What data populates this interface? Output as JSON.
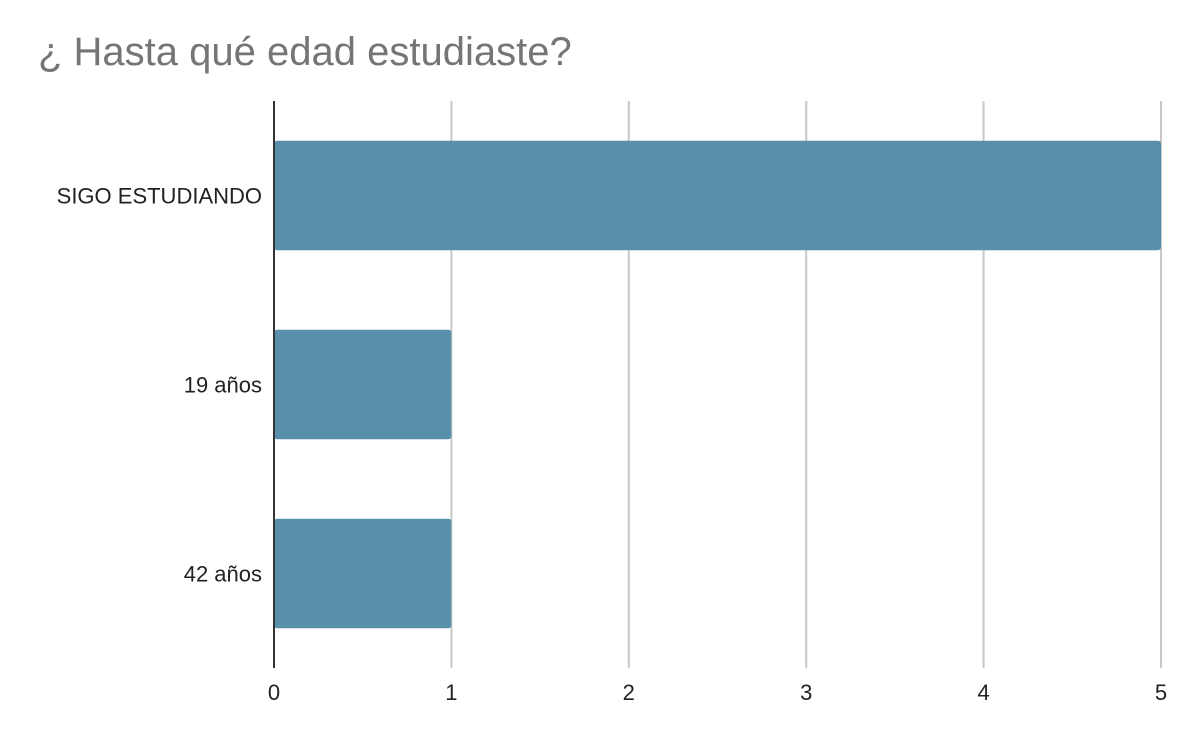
{
  "chart_data": {
    "type": "bar",
    "orientation": "horizontal",
    "title": "¿ Hasta qué edad estudiaste?",
    "categories": [
      "SIGO ESTUDIANDO",
      "19 años",
      "42 años"
    ],
    "values": [
      5,
      1,
      1
    ],
    "xlim": [
      0,
      5
    ],
    "xticks": [
      "0",
      "1",
      "2",
      "3",
      "4",
      "5"
    ],
    "xlabel": "",
    "ylabel": "",
    "grid": "vertical",
    "bar_color": "#5890ab",
    "grid_color": "#c8c8c8",
    "axis_color": "#333333"
  }
}
